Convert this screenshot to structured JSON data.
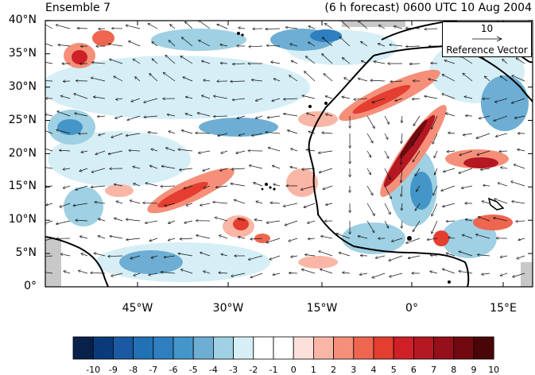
{
  "title_left": "Ensemble 7",
  "title_right": "(6 h forecast) 0600 UTC 10 Aug 2004",
  "map": {
    "lat_labels": [
      "40°N",
      "35°N",
      "30°N",
      "25°N",
      "20°N",
      "15°N",
      "10°N",
      "5°N",
      "0°"
    ],
    "lon_labels": [
      "45°W",
      "30°W",
      "15°W",
      "0°",
      "15°E"
    ],
    "extent": {
      "lon_min": -58,
      "lon_max": 19,
      "lat_min": 0,
      "lat_max": 40
    }
  },
  "reference_vector": {
    "value": "10",
    "title": "Reference Vector"
  },
  "colorbar": {
    "labels": [
      "-10",
      "-9",
      "-8",
      "-7",
      "-6",
      "-5",
      "-4",
      "-3",
      "-2",
      "-1",
      "0",
      "1",
      "2",
      "3",
      "4",
      "5",
      "6",
      "7",
      "8",
      "9",
      "10"
    ],
    "colors": [
      "#08214b",
      "#0b3a7a",
      "#1a5aa3",
      "#2371b5",
      "#2f7fc0",
      "#4596c8",
      "#6eaed4",
      "#9fd0e3",
      "#d6eef6",
      "#ffffff",
      "#ffffff",
      "#fde0dc",
      "#f9b6a6",
      "#f58f79",
      "#ef6650",
      "#e43e30",
      "#cf2027",
      "#b41822",
      "#961019",
      "#700a10",
      "#4a0508"
    ],
    "note": "Values shown on a diverging blue-white-red scale"
  }
}
